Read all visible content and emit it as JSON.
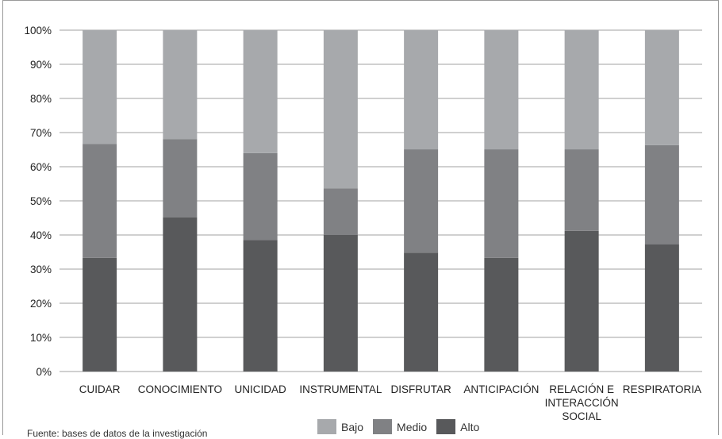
{
  "chart_data": {
    "type": "bar",
    "stacked": true,
    "percent": true,
    "categories": [
      "CUIDAR",
      "CONOCIMIENTO",
      "UNICIDAD",
      "INSTRUMENTAL",
      "DISFRUTAR",
      "ANTICIPACIÓN",
      "RELACIÓN E INTERACCIÓN SOCIAL",
      "RESPIRATORIA"
    ],
    "category_lines": [
      [
        "CUIDAR"
      ],
      [
        "CONOCIMIENTO"
      ],
      [
        "UNICIDAD"
      ],
      [
        "INSTRUMENTAL"
      ],
      [
        "DISFRUTAR"
      ],
      [
        "ANTICIPACIÓN"
      ],
      [
        "RELACIÓN E",
        "INTERACCIÓN",
        "SOCIAL"
      ],
      [
        "RESPIRATORIA"
      ]
    ],
    "series": [
      {
        "name": "Alto",
        "color": "#58595b",
        "values": [
          33.3,
          45.2,
          38.5,
          40.0,
          34.8,
          33.3,
          41.2,
          37.3
        ]
      },
      {
        "name": "Medio",
        "color": "#808184",
        "values": [
          33.4,
          22.9,
          25.5,
          13.6,
          30.3,
          31.8,
          23.9,
          29.0
        ]
      },
      {
        "name": "Bajo",
        "color": "#a7a9ac",
        "values": [
          33.3,
          31.9,
          36.0,
          46.4,
          34.9,
          34.9,
          34.9,
          33.7
        ]
      }
    ],
    "legend_order": [
      "Bajo",
      "Medio",
      "Alto"
    ],
    "ylim": [
      0,
      100
    ],
    "yticks": [
      "0%",
      "10%",
      "20%",
      "30%",
      "40%",
      "50%",
      "60%",
      "70%",
      "80%",
      "90%",
      "100%"
    ],
    "grid": true,
    "legend_position": "bottom"
  },
  "source_note": "Fuente: bases de datos de la investigación"
}
